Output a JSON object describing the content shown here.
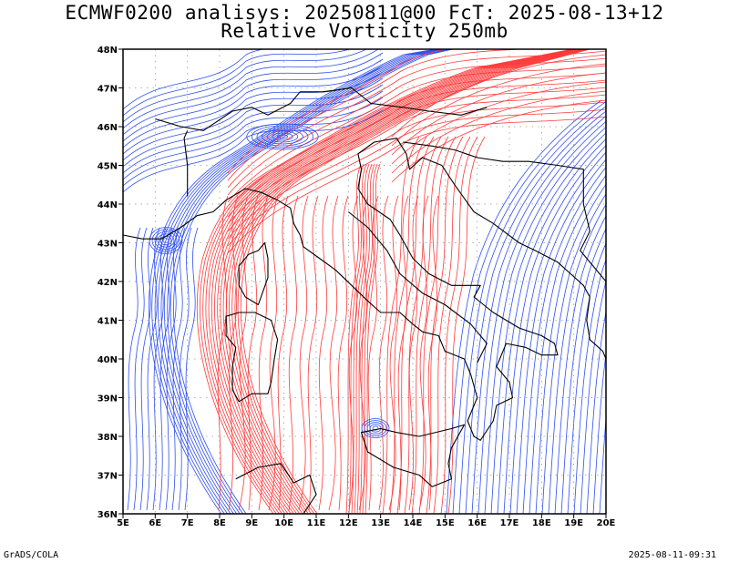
{
  "title": {
    "line1": "ECMWF0200 analisys: 20250811@00 FcT: 2025-08-13+12",
    "line2": "Relative Vorticity 250mb"
  },
  "map": {
    "lon_range": [
      5,
      20
    ],
    "lat_range": [
      36,
      48
    ],
    "lon_labels": [
      "5E",
      "6E",
      "7E",
      "8E",
      "9E",
      "10E",
      "11E",
      "12E",
      "13E",
      "14E",
      "15E",
      "16E",
      "17E",
      "18E",
      "19E",
      "20E"
    ],
    "lat_labels": [
      "36N",
      "37N",
      "38N",
      "39N",
      "40N",
      "41N",
      "42N",
      "43N",
      "44N",
      "45N",
      "46N",
      "47N",
      "48N"
    ],
    "grid": "dotted",
    "colors": {
      "positive": "#ff3a3a",
      "negative": "#2f4ff0",
      "coast": "#000000"
    }
  },
  "footer": {
    "credit": "GrADS/COLA",
    "timestamp": "2025-08-11-09:31"
  }
}
